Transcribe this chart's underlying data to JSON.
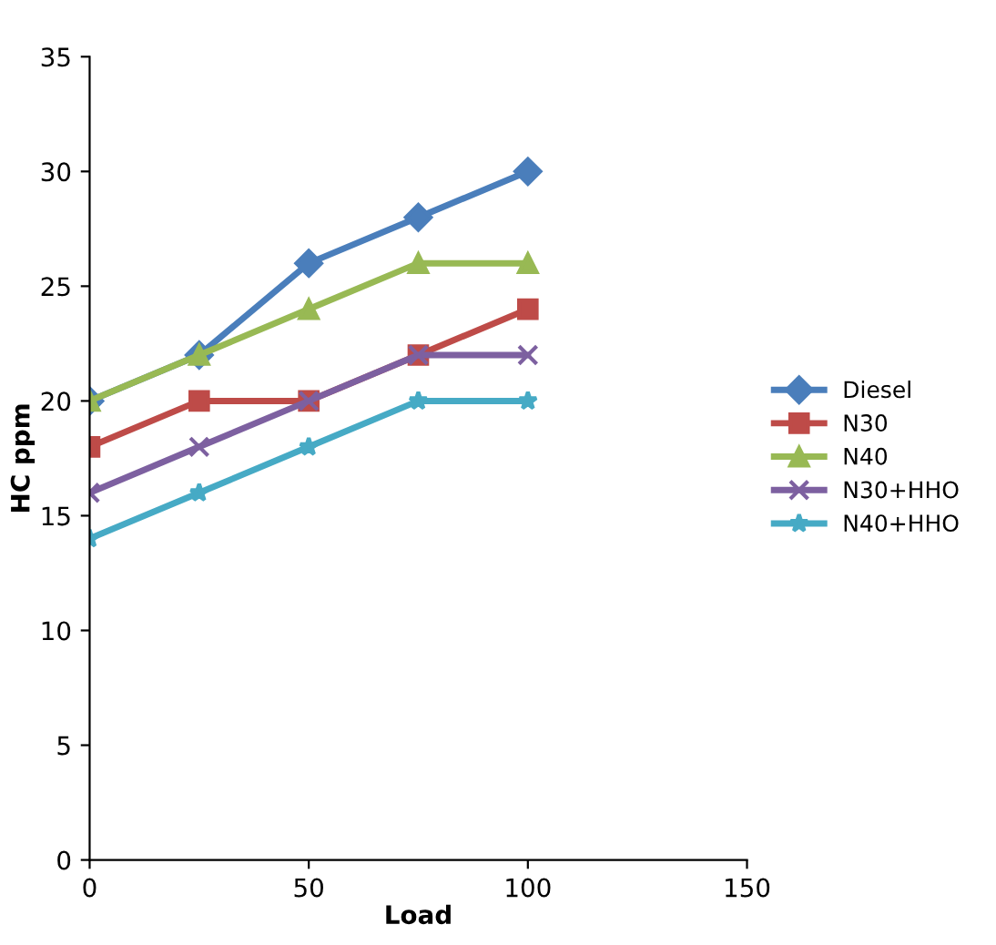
{
  "chart_data": {
    "type": "line",
    "xlabel": "Load",
    "ylabel": "HC ppm",
    "x": [
      0,
      25,
      50,
      75,
      100
    ],
    "series": [
      {
        "name": "Diesel",
        "color": "#4a7ebb",
        "marker": "diamond",
        "values": [
          20,
          22,
          26,
          28,
          30
        ]
      },
      {
        "name": "N30",
        "color": "#be4b48",
        "marker": "square",
        "values": [
          18,
          20,
          20,
          22,
          24
        ]
      },
      {
        "name": "N40",
        "color": "#98b954",
        "marker": "triangle",
        "values": [
          20,
          22,
          24,
          26,
          26
        ]
      },
      {
        "name": "N30+HHO",
        "color": "#7d60a0",
        "marker": "cross",
        "values": [
          16,
          18,
          20,
          22,
          22
        ]
      },
      {
        "name": "N40+HHO",
        "color": "#46aac5",
        "marker": "star",
        "values": [
          14,
          16,
          18,
          20,
          20
        ]
      }
    ],
    "xlim": [
      0,
      150
    ],
    "xticks": [
      0,
      50,
      100,
      150
    ],
    "ylim": [
      0,
      35
    ],
    "yticks": [
      0,
      5,
      10,
      15,
      20,
      25,
      30,
      35
    ],
    "grid": false,
    "legend": "right",
    "line_style": "solid"
  }
}
